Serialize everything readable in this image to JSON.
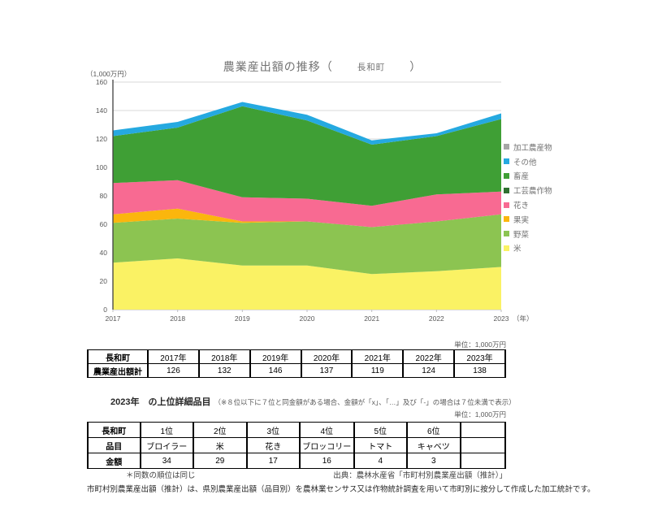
{
  "title": {
    "prefix": "農業産出額の推移（",
    "town": "長和町",
    "suffix": "）"
  },
  "chart_data": {
    "type": "area",
    "stacked": true,
    "title": "農業産出額の推移（長和町）",
    "unit_label": "（1,000万円）",
    "x": [
      "2017",
      "2018",
      "2019",
      "2020",
      "2021",
      "2022",
      "2023"
    ],
    "x_suffix": "（年）",
    "ylim": [
      0,
      160
    ],
    "yticks": [
      0,
      20,
      40,
      60,
      80,
      100,
      120,
      140,
      160
    ],
    "grid": true,
    "legend_position": "right",
    "series": [
      {
        "name": "米",
        "color": "#FAF264",
        "values": [
          33,
          36,
          31,
          31,
          25,
          27,
          30
        ]
      },
      {
        "name": "野菜",
        "color": "#8CC451",
        "values": [
          28,
          28,
          30,
          31,
          33,
          35,
          37
        ]
      },
      {
        "name": "果実",
        "color": "#FBB60D",
        "values": [
          6,
          7,
          1,
          0,
          0,
          0,
          0
        ]
      },
      {
        "name": "花き",
        "color": "#F86A92",
        "values": [
          22,
          20,
          17,
          16,
          15,
          19,
          16
        ]
      },
      {
        "name": "工芸農作物",
        "color": "#2F7030",
        "values": [
          0,
          0,
          0,
          0,
          0,
          0,
          0
        ]
      },
      {
        "name": "畜産",
        "color": "#3F9F35",
        "values": [
          33,
          37,
          64,
          55,
          43,
          41,
          51
        ]
      },
      {
        "name": "その他",
        "color": "#25A9E0",
        "values": [
          4,
          4,
          3,
          4,
          3,
          2,
          4
        ]
      },
      {
        "name": "加工農産物",
        "color": "#A6A6A6",
        "values": [
          0,
          0,
          0,
          0,
          0,
          0,
          0
        ]
      }
    ],
    "totals": [
      126,
      132,
      146,
      137,
      119,
      124,
      138
    ]
  },
  "legend": {
    "items": [
      {
        "label": "加工農産物",
        "color": "#A6A6A6"
      },
      {
        "label": "その他",
        "color": "#25A9E0"
      },
      {
        "label": "畜産",
        "color": "#3F9F35"
      },
      {
        "label": "工芸農作物",
        "color": "#2F7030"
      },
      {
        "label": "花き",
        "color": "#F86A92"
      },
      {
        "label": "果実",
        "color": "#FBB60D"
      },
      {
        "label": "野菜",
        "color": "#8CC451"
      },
      {
        "label": "米",
        "color": "#FAF264"
      }
    ]
  },
  "summary_table": {
    "unit": "単位：1,000万円",
    "corner": "長和町",
    "years": [
      "2017年",
      "2018年",
      "2019年",
      "2020年",
      "2021年",
      "2022年",
      "2023年"
    ],
    "row_label": "農業産出額計",
    "values": [
      "126",
      "132",
      "146",
      "137",
      "119",
      "124",
      "138"
    ]
  },
  "detail": {
    "heading": "2023年　の上位詳細品目",
    "note": "（※８位以下に７位と同金額がある場合、金額が「x」、「…」及び「-」の場合は７位未満で表示）",
    "unit": "単位：1,000万円",
    "corner": "長和町",
    "rank_headers": [
      "1位",
      "2位",
      "3位",
      "4位",
      "5位",
      "6位"
    ],
    "item_label": "品目",
    "items": [
      "ブロイラー",
      "米",
      "花き",
      "ブロッコリー",
      "トマト",
      "キャベツ"
    ],
    "amount_label": "金額",
    "amounts": [
      "34",
      "29",
      "17",
      "16",
      "4",
      "3"
    ],
    "footnote": "＊同数の順位は同じ",
    "source": "出典：農林水産省「市町村別農業産出額（推計）」"
  },
  "footer": {
    "text": "市町村別農業産出額（推計）は、県別農業産出額（品目別）を農林業センサス又は作物統計調査を用いて市町別に按分して作成した加工統計です。"
  }
}
